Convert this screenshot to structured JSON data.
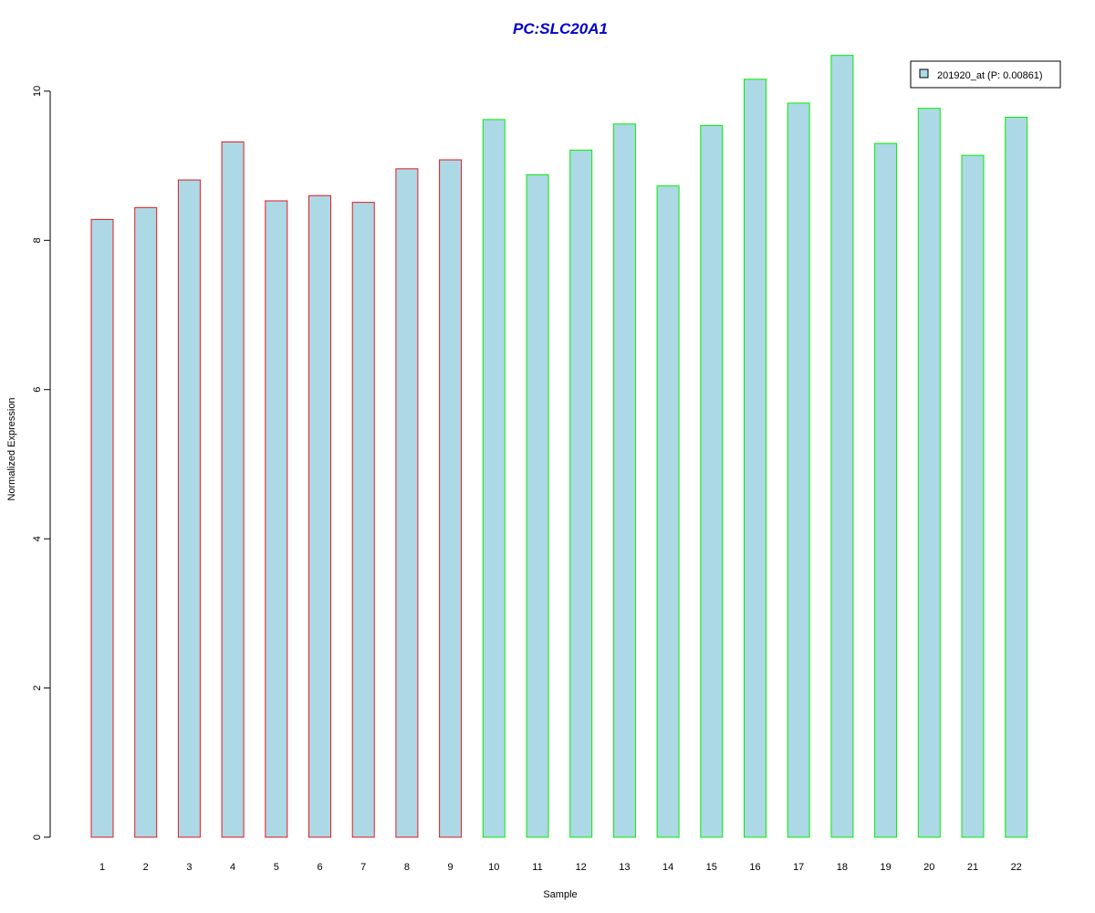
{
  "chart_data": {
    "type": "bar",
    "title": "PC:SLC20A1",
    "xlabel": "Sample",
    "ylabel": "Normalized Expression",
    "ylim": [
      0,
      10.5
    ],
    "yticks": [
      0,
      2,
      4,
      6,
      8,
      10
    ],
    "categories": [
      "1",
      "2",
      "3",
      "4",
      "5",
      "6",
      "7",
      "8",
      "9",
      "10",
      "11",
      "12",
      "13",
      "14",
      "15",
      "16",
      "17",
      "18",
      "19",
      "20",
      "21",
      "22"
    ],
    "series": [
      {
        "name": "201920_at (P: 0.00861)",
        "values": [
          8.28,
          8.44,
          8.81,
          9.32,
          8.53,
          8.6,
          8.51,
          8.96,
          9.08,
          9.62,
          8.88,
          9.21,
          9.56,
          8.73,
          9.54,
          10.16,
          9.84,
          10.48,
          9.3,
          9.77,
          9.14,
          9.65
        ]
      }
    ],
    "groups": [
      {
        "border_color": "#e41a1c",
        "samples": [
          1,
          2,
          3,
          4,
          5,
          6,
          7,
          8,
          9
        ]
      },
      {
        "border_color": "#00ee00",
        "samples": [
          10,
          11,
          12,
          13,
          14,
          15,
          16,
          17,
          18,
          19,
          20,
          21,
          22
        ]
      }
    ],
    "bar_fill": "#add8e6",
    "title_color": "#0000cc",
    "legend_placement": "top-right",
    "grid": false
  }
}
